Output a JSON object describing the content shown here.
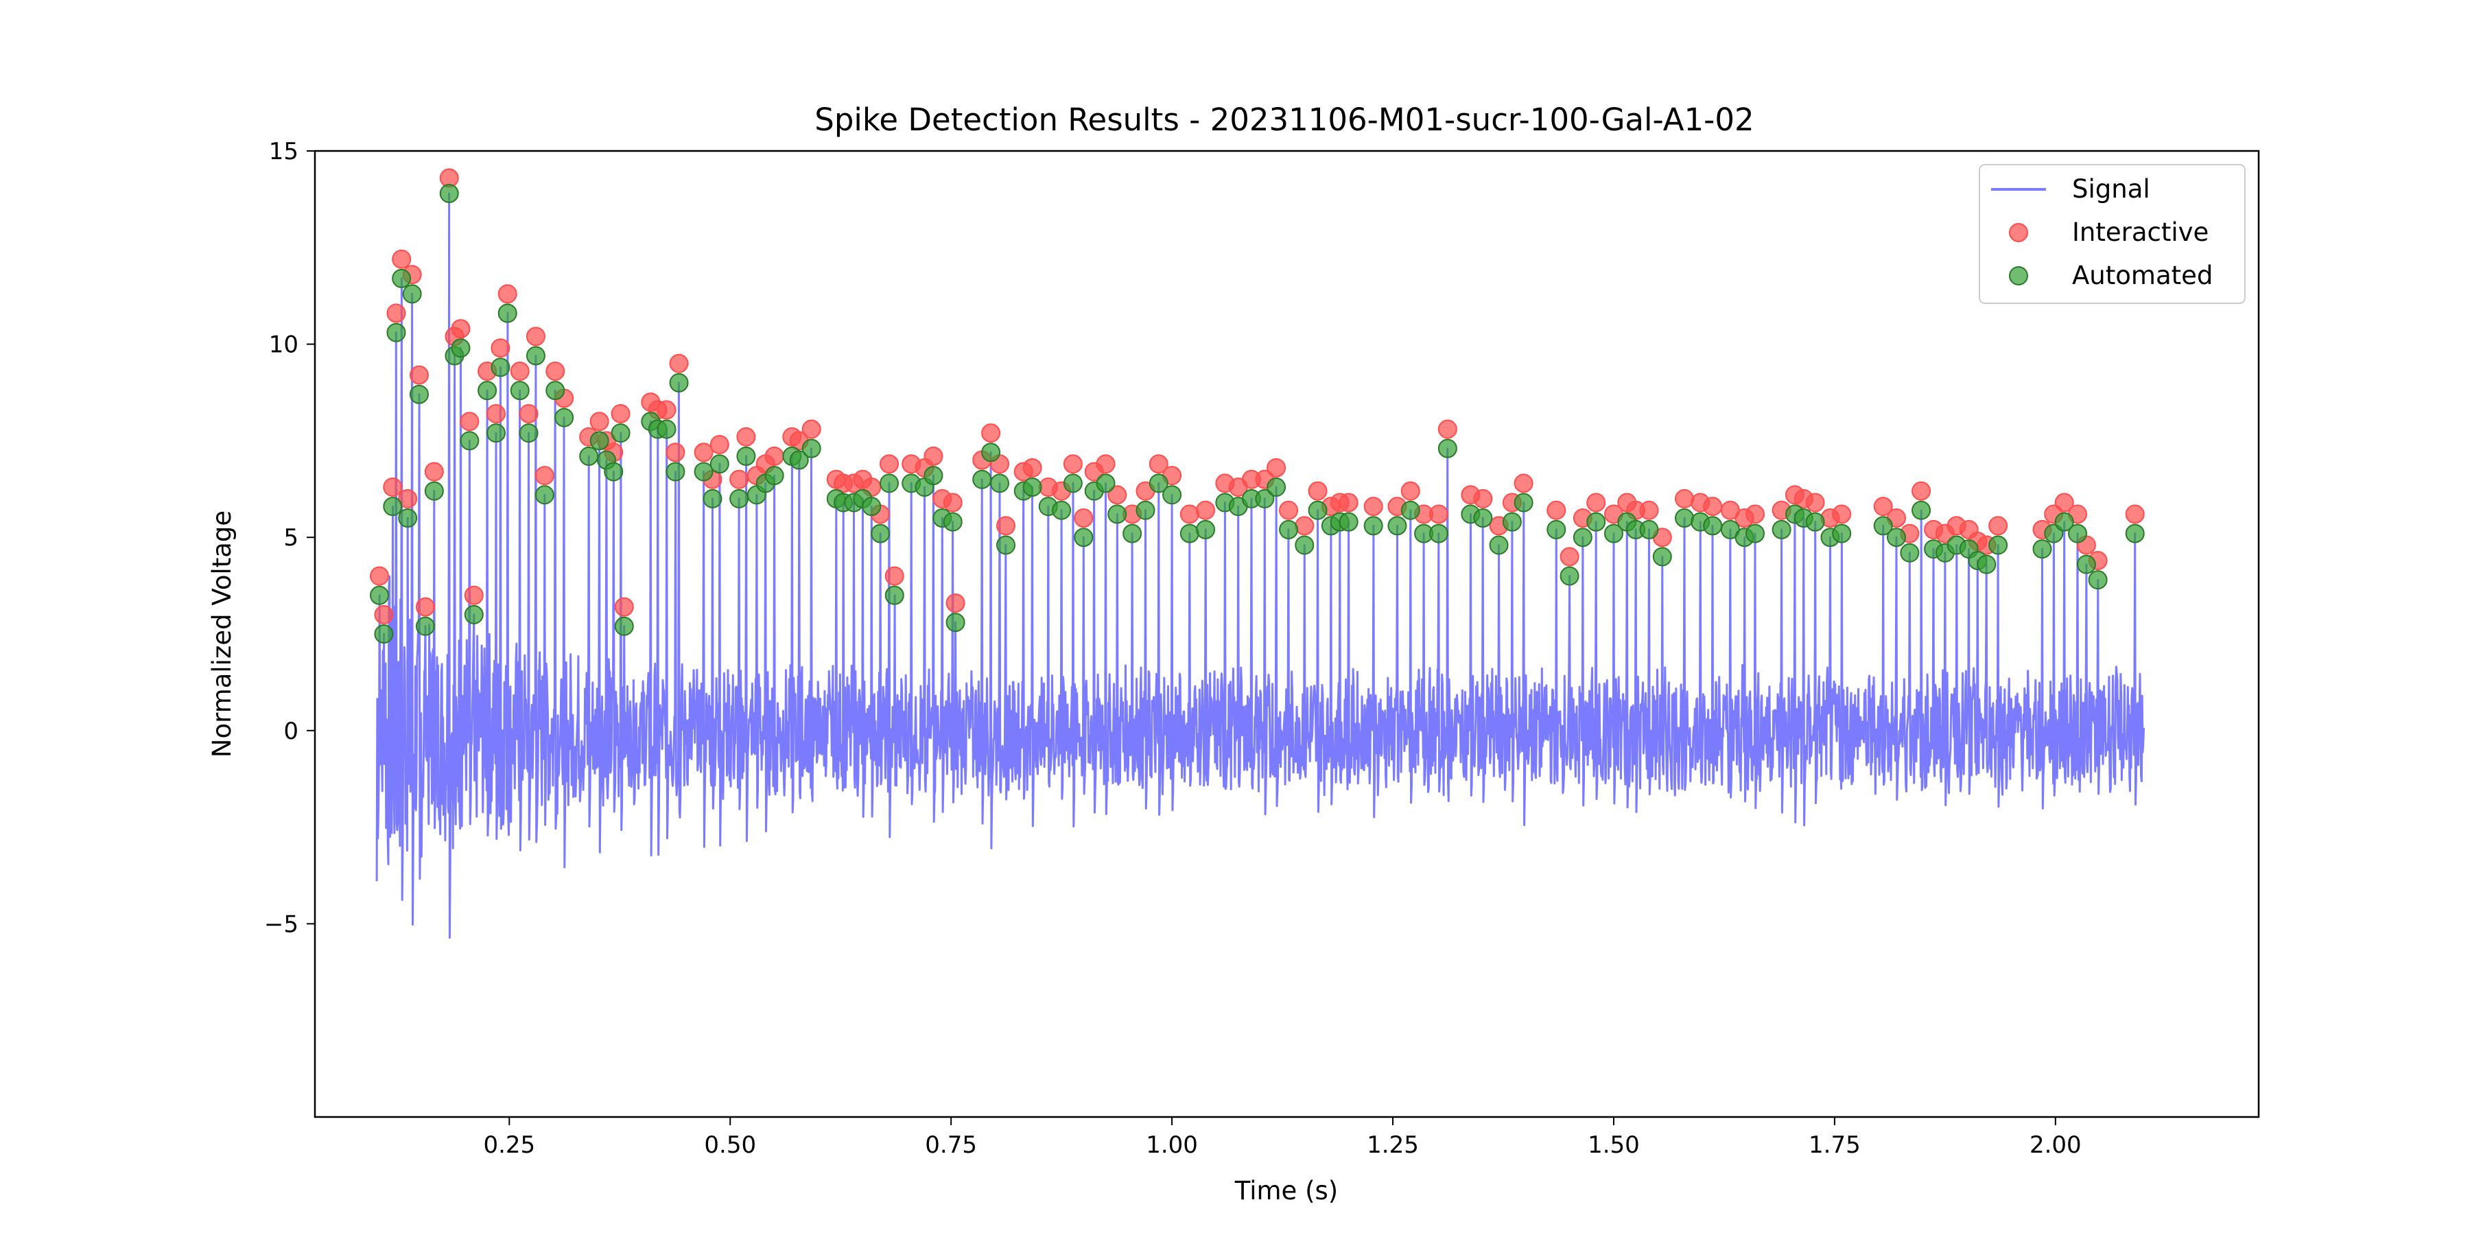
{
  "chart_data": {
    "type": "line",
    "title": "Spike Detection Results - 20231106-M01-sucr-100-Gal-A1-02",
    "xlabel": "Time (s)",
    "ylabel": "Normalized Voltage",
    "xlim": [
      0.03,
      2.23
    ],
    "ylim": [
      -10.0,
      15.0
    ],
    "xticks": [
      0.25,
      0.5,
      0.75,
      1.0,
      1.25,
      1.5,
      1.75,
      2.0
    ],
    "xtick_labels": [
      "0.25",
      "0.50",
      "0.75",
      "1.00",
      "1.25",
      "1.50",
      "1.75",
      "2.00"
    ],
    "yticks": [
      -5,
      0,
      5,
      10,
      15
    ],
    "ytick_labels": [
      "−5",
      "0",
      "5",
      "10",
      "15"
    ],
    "grid": false,
    "legend_position": "top-right",
    "colors": {
      "signal": "#7b7bff",
      "interactive": "#ff4d4d",
      "automated": "#33a033"
    },
    "series": [
      {
        "name": "Signal",
        "kind": "line",
        "t_start": 0.1,
        "t_end": 2.1,
        "description_points": "continuous voltage trace with spikes at detected times"
      },
      {
        "name": "Interactive",
        "kind": "scatter",
        "x": [
          0.103,
          0.108,
          0.118,
          0.122,
          0.128,
          0.135,
          0.14,
          0.148,
          0.155,
          0.165,
          0.182,
          0.188,
          0.195,
          0.205,
          0.21,
          0.225,
          0.235,
          0.24,
          0.248,
          0.262,
          0.272,
          0.28,
          0.29,
          0.302,
          0.312,
          0.34,
          0.352,
          0.36,
          0.368,
          0.376,
          0.38,
          0.41,
          0.418,
          0.428,
          0.438,
          0.442,
          0.47,
          0.48,
          0.488,
          0.51,
          0.518,
          0.53,
          0.54,
          0.55,
          0.57,
          0.578,
          0.592,
          0.62,
          0.628,
          0.64,
          0.65,
          0.66,
          0.67,
          0.68,
          0.686,
          0.705,
          0.72,
          0.73,
          0.74,
          0.752,
          0.755,
          0.785,
          0.795,
          0.805,
          0.812,
          0.832,
          0.842,
          0.86,
          0.875,
          0.888,
          0.9,
          0.912,
          0.925,
          0.938,
          0.955,
          0.97,
          0.985,
          1.0,
          1.02,
          1.038,
          1.06,
          1.075,
          1.09,
          1.105,
          1.118,
          1.132,
          1.15,
          1.165,
          1.18,
          1.19,
          1.2,
          1.228,
          1.255,
          1.27,
          1.285,
          1.302,
          1.312,
          1.338,
          1.352,
          1.37,
          1.385,
          1.398,
          1.435,
          1.45,
          1.465,
          1.48,
          1.5,
          1.515,
          1.525,
          1.54,
          1.555,
          1.58,
          1.598,
          1.612,
          1.632,
          1.648,
          1.66,
          1.69,
          1.705,
          1.715,
          1.728,
          1.745,
          1.758,
          1.805,
          1.82,
          1.835,
          1.848,
          1.862,
          1.875,
          1.888,
          1.902,
          1.912,
          1.922,
          1.935,
          1.985,
          1.998,
          2.01,
          2.025,
          2.035,
          2.048,
          2.09
        ],
        "y": [
          4.0,
          3.0,
          6.3,
          10.8,
          12.2,
          6.0,
          11.8,
          9.2,
          3.2,
          6.7,
          14.3,
          10.2,
          10.4,
          8.0,
          3.5,
          9.3,
          8.2,
          9.9,
          11.3,
          9.3,
          8.2,
          10.2,
          6.6,
          9.3,
          8.6,
          7.6,
          8.0,
          7.5,
          7.2,
          8.2,
          3.2,
          8.5,
          8.3,
          8.3,
          7.2,
          9.5,
          7.2,
          6.5,
          7.4,
          6.5,
          7.6,
          6.6,
          6.9,
          7.1,
          7.6,
          7.5,
          7.8,
          6.5,
          6.4,
          6.4,
          6.5,
          6.3,
          5.6,
          6.9,
          4.0,
          6.9,
          6.8,
          7.1,
          6.0,
          5.9,
          3.3,
          7.0,
          7.7,
          6.9,
          5.3,
          6.7,
          6.8,
          6.3,
          6.2,
          6.9,
          5.5,
          6.7,
          6.9,
          6.1,
          5.6,
          6.2,
          6.9,
          6.6,
          5.6,
          5.7,
          6.4,
          6.3,
          6.5,
          6.5,
          6.8,
          5.7,
          5.3,
          6.2,
          5.8,
          5.9,
          5.9,
          5.8,
          5.8,
          6.2,
          5.6,
          5.6,
          7.8,
          6.1,
          6.0,
          5.3,
          5.9,
          6.4,
          5.7,
          4.5,
          5.5,
          5.9,
          5.6,
          5.9,
          5.7,
          5.7,
          5.0,
          6.0,
          5.9,
          5.8,
          5.7,
          5.5,
          5.6,
          5.7,
          6.1,
          6.0,
          5.9,
          5.5,
          5.6,
          5.8,
          5.5,
          5.1,
          6.2,
          5.2,
          5.1,
          5.3,
          5.2,
          4.9,
          4.8,
          5.3,
          5.2,
          5.6,
          5.9,
          5.6,
          4.8,
          4.4,
          5.6
        ],
        "description": "red semi-transparent markers at detected spike peaks (interactive detection)"
      },
      {
        "name": "Automated",
        "kind": "scatter",
        "x": [
          0.103,
          0.108,
          0.118,
          0.122,
          0.128,
          0.135,
          0.14,
          0.148,
          0.155,
          0.165,
          0.182,
          0.188,
          0.195,
          0.205,
          0.21,
          0.225,
          0.235,
          0.24,
          0.248,
          0.262,
          0.272,
          0.28,
          0.29,
          0.302,
          0.312,
          0.34,
          0.352,
          0.36,
          0.368,
          0.376,
          0.38,
          0.41,
          0.418,
          0.428,
          0.438,
          0.442,
          0.47,
          0.48,
          0.488,
          0.51,
          0.518,
          0.53,
          0.54,
          0.55,
          0.57,
          0.578,
          0.592,
          0.62,
          0.628,
          0.64,
          0.65,
          0.66,
          0.67,
          0.68,
          0.686,
          0.705,
          0.72,
          0.73,
          0.74,
          0.752,
          0.755,
          0.785,
          0.795,
          0.805,
          0.812,
          0.832,
          0.842,
          0.86,
          0.875,
          0.888,
          0.9,
          0.912,
          0.925,
          0.938,
          0.955,
          0.97,
          0.985,
          1.0,
          1.02,
          1.038,
          1.06,
          1.075,
          1.09,
          1.105,
          1.118,
          1.132,
          1.15,
          1.165,
          1.18,
          1.19,
          1.2,
          1.228,
          1.255,
          1.27,
          1.285,
          1.302,
          1.312,
          1.338,
          1.352,
          1.37,
          1.385,
          1.398,
          1.435,
          1.45,
          1.465,
          1.48,
          1.5,
          1.515,
          1.525,
          1.54,
          1.555,
          1.58,
          1.598,
          1.612,
          1.632,
          1.648,
          1.66,
          1.69,
          1.705,
          1.715,
          1.728,
          1.745,
          1.758,
          1.805,
          1.82,
          1.835,
          1.848,
          1.862,
          1.875,
          1.888,
          1.902,
          1.912,
          1.922,
          1.935,
          1.985,
          1.998,
          2.01,
          2.025,
          2.035,
          2.048,
          2.09
        ],
        "y": [
          3.5,
          2.5,
          5.8,
          10.3,
          11.7,
          5.5,
          11.3,
          8.7,
          2.7,
          6.2,
          13.9,
          9.7,
          9.9,
          7.5,
          3.0,
          8.8,
          7.7,
          9.4,
          10.8,
          8.8,
          7.7,
          9.7,
          6.1,
          8.8,
          8.1,
          7.1,
          7.5,
          7.0,
          6.7,
          7.7,
          2.7,
          8.0,
          7.8,
          7.8,
          6.7,
          9.0,
          6.7,
          6.0,
          6.9,
          6.0,
          7.1,
          6.1,
          6.4,
          6.6,
          7.1,
          7.0,
          7.3,
          6.0,
          5.9,
          5.9,
          6.0,
          5.8,
          5.1,
          6.4,
          3.5,
          6.4,
          6.3,
          6.6,
          5.5,
          5.4,
          2.8,
          6.5,
          7.2,
          6.4,
          4.8,
          6.2,
          6.3,
          5.8,
          5.7,
          6.4,
          5.0,
          6.2,
          6.4,
          5.6,
          5.1,
          5.7,
          6.4,
          6.1,
          5.1,
          5.2,
          5.9,
          5.8,
          6.0,
          6.0,
          6.3,
          5.2,
          4.8,
          5.7,
          5.3,
          5.4,
          5.4,
          5.3,
          5.3,
          5.7,
          5.1,
          5.1,
          7.3,
          5.6,
          5.5,
          4.8,
          5.4,
          5.9,
          5.2,
          4.0,
          5.0,
          5.4,
          5.1,
          5.4,
          5.2,
          5.2,
          4.5,
          5.5,
          5.4,
          5.3,
          5.2,
          5.0,
          5.1,
          5.2,
          5.6,
          5.5,
          5.4,
          5.0,
          5.1,
          5.3,
          5.0,
          4.6,
          5.7,
          4.7,
          4.6,
          4.8,
          4.7,
          4.4,
          4.3,
          4.8,
          4.7,
          5.1,
          5.4,
          5.1,
          4.3,
          3.9,
          5.1
        ],
        "description": "green semi-transparent markers at detected spike peaks (automated detection)"
      }
    ]
  }
}
